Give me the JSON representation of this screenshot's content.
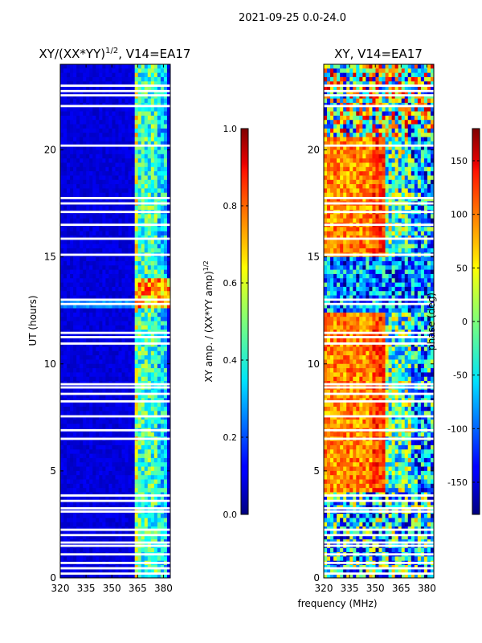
{
  "figure": {
    "suptitle": "2021-09-25 0.0-24.0",
    "shared_xlabel": "frequency (MHz)"
  },
  "chart_data": [
    {
      "type": "heatmap",
      "title_main": "XY/(XX*YY)",
      "title_sup": "1/2",
      "title_tail": ", V14=EA17",
      "ylabel": "UT (hours)",
      "x_ticks": [
        "320",
        "335",
        "350",
        "365",
        "380"
      ],
      "x_tick_values": [
        320,
        335,
        350,
        365,
        380
      ],
      "y_ticks": [
        "0",
        "5",
        "10",
        "15",
        "20"
      ],
      "y_tick_values": [
        0,
        5,
        10,
        15,
        20
      ],
      "xlim": [
        320,
        384
      ],
      "ylim": [
        0,
        24
      ],
      "colorbar": {
        "label_main": "XY amp. / (XX*YY amp)",
        "label_sup": "1/2",
        "ticks": [
          "0.0",
          "0.2",
          "0.4",
          "0.6",
          "0.8",
          "1.0"
        ],
        "tick_values": [
          0.0,
          0.2,
          0.4,
          0.6,
          0.8,
          1.0
        ],
        "range": [
          0.0,
          1.0
        ],
        "colormap": "jet"
      },
      "flagged_gap_hours": [
        0.2,
        0.45,
        0.7,
        1.1,
        1.5,
        1.65,
        2.0,
        2.25,
        3.1,
        3.25,
        3.6,
        3.85,
        6.5,
        6.9,
        7.55,
        8.25,
        8.6,
        8.9,
        9.05,
        10.95,
        11.25,
        11.45,
        12.8,
        13.0,
        15.1,
        15.85,
        16.5,
        17.1,
        17.5,
        17.75,
        20.2,
        22.05,
        22.55,
        22.75,
        23.0
      ]
    },
    {
      "type": "heatmap",
      "title_main": "XY, V14=EA17",
      "ylabel": "",
      "x_ticks": [
        "320",
        "335",
        "350",
        "365",
        "380"
      ],
      "x_tick_values": [
        320,
        335,
        350,
        365,
        380
      ],
      "y_ticks": [
        "0",
        "5",
        "10",
        "15",
        "20"
      ],
      "y_tick_values": [
        0,
        5,
        10,
        15,
        20
      ],
      "xlim": [
        320,
        384
      ],
      "ylim": [
        0,
        24
      ],
      "colorbar": {
        "label_main": "phase (deg)",
        "ticks": [
          "-150",
          "-100",
          "-50",
          "0",
          "50",
          "100",
          "150"
        ],
        "tick_values": [
          -150,
          -100,
          -50,
          0,
          50,
          100,
          150
        ],
        "range": [
          -180,
          180
        ],
        "colormap": "jet"
      },
      "flagged_gap_hours": [
        0.2,
        0.45,
        0.7,
        1.1,
        1.5,
        1.65,
        2.0,
        2.25,
        3.1,
        3.25,
        3.6,
        3.85,
        6.5,
        6.9,
        7.55,
        8.25,
        8.6,
        8.9,
        9.05,
        10.95,
        11.25,
        11.45,
        12.8,
        13.0,
        15.1,
        15.85,
        16.5,
        17.1,
        17.5,
        17.75,
        20.2,
        22.05,
        22.55,
        22.75,
        23.0
      ]
    }
  ],
  "colors": {
    "jet_dark_blue": "#00007f",
    "background": "#ffffff",
    "axis": "#000000"
  }
}
